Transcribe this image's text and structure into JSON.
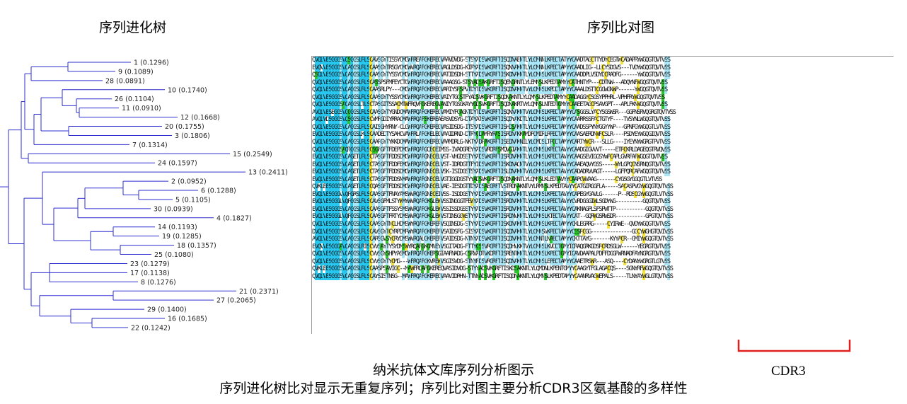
{
  "titles": {
    "tree": "序列进化树",
    "alignment": "序列比对图"
  },
  "tree": {
    "leaves": [
      {
        "label": "1 (0.1296)"
      },
      {
        "label": "9 (0.1089)"
      },
      {
        "label": "28 (0.0891)"
      },
      {
        "label": "10 (0.1740)"
      },
      {
        "label": "26 (0.1104)"
      },
      {
        "label": "11 (0.0910)"
      },
      {
        "label": "12 (0.1668)"
      },
      {
        "label": "20 (0.1755)"
      },
      {
        "label": "3 (0.1806)"
      },
      {
        "label": "7 (0.1314)"
      },
      {
        "label": "15 (0.2549)"
      },
      {
        "label": "24 (0.1597)"
      },
      {
        "label": "13 (0.2411)"
      },
      {
        "label": "2 (0.0952)"
      },
      {
        "label": "6 (0.1288)"
      },
      {
        "label": "5 (0.1105)"
      },
      {
        "label": "30 (0.0939)"
      },
      {
        "label": "4 (0.1827)"
      },
      {
        "label": "14 (0.1193)"
      },
      {
        "label": "19 (0.1285)"
      },
      {
        "label": "18 (0.1357)"
      },
      {
        "label": "25 (0.1080)"
      },
      {
        "label": "23 (0.1279)"
      },
      {
        "label": "17 (0.1138)"
      },
      {
        "label": "8 (0.1276)"
      },
      {
        "label": "21 (0.2371)"
      },
      {
        "label": "27 (0.2065)"
      },
      {
        "label": "29 (0.1400)"
      },
      {
        "label": "16 (0.1685)"
      },
      {
        "label": "22 (0.1242)"
      }
    ]
  },
  "alignment": {
    "rows": [
      "QVQLVESGGGSVQSGGSLRLSCAVSGYTISSYCMGWFREAPGKEREGVAAVDVDG-STSYADSVKGRFTISQDNAENTLYLQMNNLKPEDTATYYCAADTAGCTTYDYCEGTWCADAPRYWGQGTQVTVSS",
      "EVQVVESGGGSVQAGGSLRLSCAASGYTRSGYCMGWVRQAPGKEREGVAGLDSDG-KIRYADSVKGRFTISQNNAKNTLYLQMNNLKPEDTAMYYCAADLIG--LLCYSDGVS---TVDYWGQGTQVTVSS",
      "QSQLVESGGGSVQAGGSLRLSCAASGYTYSSYCMGWFRQAPGKEREGVATIDSDH-STTYADSVKGRFTISKDNAKNTLYLQMNSLKPEDTAMYYCAADDPLVSDYDCRADFG------YWGQGTQVTVSS",
      "QVQLVESGGGSVQAGGSLRLSCASSPSFMFEYCTGWFRQAPGKEREGVAAAGSG-STSYADSAKGRFTISQENGRNTLYLEMNSLKPEDTAMYYCATHNTYP---CDTNW---ADQYNFWGQGTQVTVSS",
      "QVQLVESGGGSVQAGGSLRLSCAASRLPY---CMGWFRQAPGKEREGVARIYSRSPVTDYTDSVKGRFTISQDNAKNTVYLQMNSLKPDDTAMYYCAAALDSTTCGGWGNWP------YWGQGTQVTVSS",
      "QVQLVESGGGSVQAGGSLRLSCAASGYTYSSYCMGWFRQAPGKEREGVAIYTGGSTFYADSVKGRFTISQDNAKNTLYLQMNSLKPEDTAMYYCAADAGGYCSGSYPPHRL-VPHFRYWGQGTQVTVSS",
      "QVQLVESGGGSAQAGGSLTLSCTASGITSSACMTWFRQVPGKEREGVANIYTGSGKAYYGDSVKGRFTISQDNAKRTVYLQMNSLNTEDTGMYYCAAEETAGCPSAVGPT---APLFKNWGQGTQVTVSS",
      "AVQLVESEGGSVQGGGSLRLSCAASGYTYGNDCMAWFRQAPGKEREGVAMIYFGAGNTDYTDSVKGRFTISQNNAKNTVYLQMNSLKPEDTAMYYCASGGSLYACYSGSWSR---GGFNSRVQGRGTQVTVSS",
      "AVQLVDSGGGSVQSGGSLRLSCVMPGDIYRRACMAWFRQAPSKEREAEASVDSYG-DTAYATSVKGRFTISQDYAKDTLYLQMNSLKPEDTAMYYCAARRSSFACTGTYF----TVSYNLWGQGTQVTVSS",
      "QVQLVESGGGSVQAGGSLRLSCAISGHYRNY-CLGWFRQAPGKEREGVASIDSDG-ITSYADSVKGRFTISHDSAKNTLYLQMNSLKPEDTAMYYCAADSSPYNYGGYYWP---GPNFGYWGQGTLVTVSS",
      "EVQLVESGGGSVQAGGSLKLSCAADEDTYSAHCVAWFRLAPGKELEGVAAIDRND-DTRYGDAMRYRASISRDNAKKAMDFQMIRLRPEDTAMYYCAASAERDNWFCSLR----PSDYEYWGQGIQVTVSS",
      "QVQLVESGGGSVQAGGSLRLSCAARGYTYKKDCMAWFRQAPGKEREGVAAMDRLG-NKTYADPAKGRFTISEDNAKNILYLQMDSLTPGDTAMYYCARTYWCR---SLLG----IYEYNYWGRGTPVTVSS",
      "QVQLVESGGGSAQTGGSLRLSCSGFGFTFDEPDMGWFRQAPGQECEIMSS-IVADGREYYADSVRDRFSMQVGIAKNTLYLQMNSLKPEDTAVYYCAADGIGVVVT-----ETRCKRLDAGEQGTRVQVSS",
      "EVQLVESGGGSVQAGETLRLSCTASGFTFDDSDMGWFRQAPGNECELVST-VHGDSSTYYADSVKGRFTISRDNAKNTLYLQMNSLKPEDTAVYYCAAGSEVIGGSYWPCAPLGVRFAFWGQGTQVTVSS",
      "EVQLVESGGGSVQAGETLRLSCTASGFTFDDFEMGWFRQAPGNECELVST-IDRDGTTFYIDSVKGRFTISKDNAQNTVYLQMNSLKPEDTAVYYCAAEAQVYGSS-----WYLGPQCNSRNQGTQVTVSS",
      "EVQLVESGGGSVQAGETLRLSCTASGFTFDDSDMGWFRQAPGNECELVSK-ISIDGSTSYADSVKGRFTISLDNAKNTVYLQMNSLKPEDTAVYYCADADRVVAGT-----LGFPQRCAFWGQGTQVTVSS",
      "EVQLVESGGGSVQAGETLRLSCTASGFTFDDSNMAWFRQAPGNECELVGTIGGDGSTYYADSVKGRFTISQDNAKNTLYLQMNSLKLEDTAVYYCAAPGWVAAG-------CYGSGYGGQGTLVTVSS",
      "QVKLEESGGGSVQAGETLRLSCQASGFTFDDSDMGWFRQAPGNECELVAE-IESDGTTDYADSAEGRFTVSTRDNAKNTVYLRMNSLKPEDTAVYYCATGIRGGFLA-----SACASPVGYWGQGTQVTVSS",
      "EVQLVESGGGVVQPGRSLRLSCAASGFTFNAYAMSWVRQAPGNECEIVSS-ISDDGSTYYADSVKGRFTISRDNAKNTLYLQMNSLKPEDTAVYYCAPEGYGAVLG------P--RDSCGYWGQGTLVTVSS",
      "EVQLVESGGGLVQPGGSLRLSCAVSGFMLSTYWMYWVRQAPGKGLEWVSSINGGGTFEWYADSVKGRFTISRDNAKNTLYLQMNSLKPEDTAVYYCVRDGGGIWLSGDYWG----------GQGTQVTVSS",
      "EVQLVESGGGSVQAGGSLRLSCAASGFTFSSYSMSWVRQAPGKGLEWVSSISSDGSSTYYADSVKGRFTISRDNAKNTLYLQMNSLKPEDTAVYYCAKNAGPLSFSPWTTP-----------GQGTQVTVSS",
      "EVQLVESGGGLVQPGGSLRLSCAASGFTFRTYDMSWVRQAPGKGLEWVSTINSGGWSTYYADSVKGRFTISRDNVKNTLYLQMNSLKTEDTAVYYCAT--GQRWGSRWSDR-----------GPGTQVTVSS",
      "QVQLVESGGGSVQAGGSLRLSCAASGYTNCLHDMSWYRQAPGKEREFVSQINSDG-STYYADSVKGRFTISKDNAKNTLYLQMNSLKPEDTAMYYCKLEGRRG-----CYIRWE--QVDYWGQGTQVTVSS",
      "DVQLVESGGGSVQAGGSLRLSCAVSGYTCYRPDMRWYRQAPGKEREFVSAIDSFG-SISYADSVKGRFTISQDNAKNTLYLQMNSVKPEDTAMYYCSSRCGG---------------GGCYWGHGTQVIVSS",
      "AVQLVESGGGSVQAGGSLRLSCARSGVSYCRYDMSWVRQALGKEREFVSAIDSDG-NTNYADSVKGRFTISQDNAKNTLYLQMNTLNAEDTAMYYCKTTAYG-------KYYACR--GMIYWGQGTQVTVSS",
      "EVQVVESGGGAVQAGGSLRISCVVSAYTYSYDMSWYRQAPGKGMNEYVSGITADG-FTTYGSSVRGRFTISQDHVKKTVYLQMNSLKVDDTGMYICRAQGRKGDSRCRDSGLW------YEGRGTQVTVSS",
      "QVQLVESGGGSVQAGGSLRLSCVVSGYSHPYASMGWFRQAPGKERSGIAAFNADG-GSRVADTVKDRFTISRENTKNTLYLQMNSLKPEDTGMYICAVDAAPALPDFFDGGPWRNADFAYNGRGTQVTVSS",
      "QVQLVESGGGSVQAGGSLRLSCVVSGYTYCMG---WFRQAPGKVREWVSGISVDG-STNYRDSVRGRFTISQDNAKNTLYLQMNSLEPEDTAMYYCAAETRSWR---ASQ----CYDANYWGRGTLGTVSS",
      "QVKLEESGGGSVQAGGSLRLSCAASPSAVIGC--MAWFRQAPGKEREQVASIDVDG-STYYADSVKGRFTISKDSAKNTLYLQMDNLKPENTGMYYCAAGYTFGLAGACQS----SGNYRFWGQGTQVTVSS",
      "QVQLVESGGGSVQAGGSLRLSCAYSISTNSG--MAWFRQAPGKEREGVAAVIDRHN-TTNYADSVKGRFTISQDNAKNTLYLQMNSLKPEDTAMYYCAANRVAGWEPALS-----TLNYAYWGLGTQVTVSS"
    ]
  },
  "cdr3_label": "CDR3",
  "caption": {
    "line1": "纳米抗体文库序列分析图示",
    "line2": "序列进化树比对显示无重复序列；序列比对图主要分析CDR3区氨基酸的多样性"
  },
  "colors": {
    "tree_line": "#2f2fd0",
    "bracket": "#e0201e",
    "conserved_cyan": "#27c7f0",
    "highlight_yellow": "#f3e33a",
    "highlight_green": "#29c829"
  }
}
